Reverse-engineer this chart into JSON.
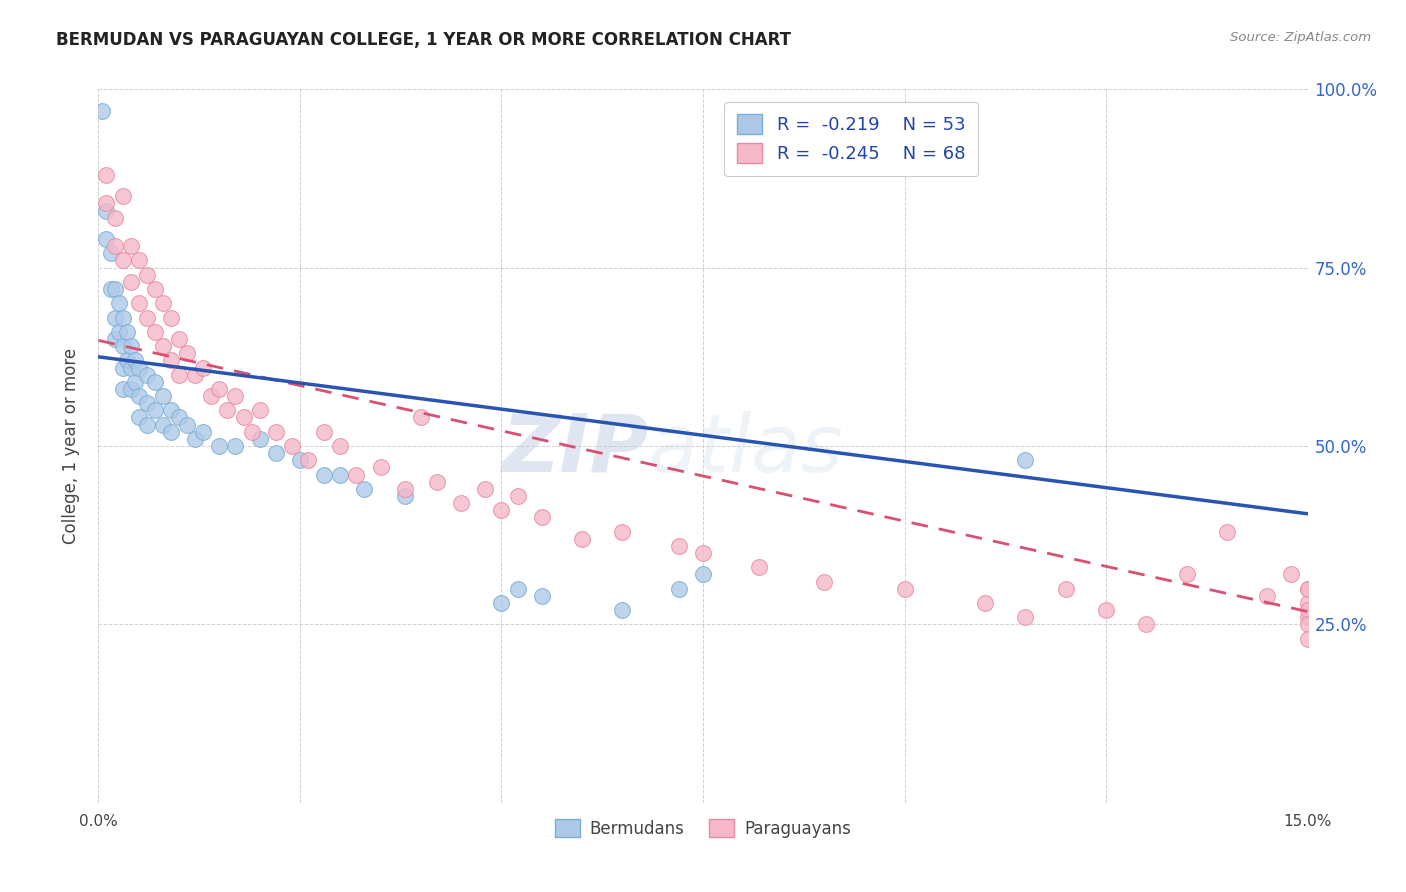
{
  "title": "BERMUDAN VS PARAGUAYAN COLLEGE, 1 YEAR OR MORE CORRELATION CHART",
  "source": "Source: ZipAtlas.com",
  "ylabel": "College, 1 year or more",
  "xlim": [
    0,
    0.15
  ],
  "ylim": [
    0,
    1.0
  ],
  "xticks": [
    0,
    0.025,
    0.05,
    0.075,
    0.1,
    0.125,
    0.15
  ],
  "xtick_labels": [
    "0.0%",
    "",
    "",
    "",
    "",
    "",
    "15.0%"
  ],
  "ytick_positions_right": [
    0.25,
    0.5,
    0.75,
    1.0
  ],
  "ytick_labels_right": [
    "25.0%",
    "50.0%",
    "75.0%",
    "100.0%"
  ],
  "bermuda_R": -0.219,
  "bermuda_N": 53,
  "paraguay_R": -0.245,
  "paraguay_N": 68,
  "bermuda_scatter_color": "#aec9e8",
  "bermuda_edge_color": "#7aaed4",
  "paraguay_scatter_color": "#f5b8c8",
  "paraguay_edge_color": "#e88aa0",
  "trend_bermuda_color": "#2955b0",
  "trend_paraguay_color": "#d95070",
  "background_color": "#ffffff",
  "grid_color": "#cccccc",
  "watermark_zip": "ZIP",
  "watermark_atlas": "atlas",
  "legend_label_bermuda": "Bermudans",
  "legend_label_paraguay": "Paraguayans",
  "bermuda_trend_x0": 0.0,
  "bermuda_trend_y0": 0.625,
  "bermuda_trend_x1": 0.15,
  "bermuda_trend_y1": 0.405,
  "paraguay_trend_x0": 0.0,
  "paraguay_trend_y0": 0.648,
  "paraguay_trend_x1": 0.15,
  "paraguay_trend_y1": 0.268,
  "bermuda_x": [
    0.0005,
    0.001,
    0.001,
    0.0015,
    0.0015,
    0.002,
    0.002,
    0.002,
    0.0025,
    0.0025,
    0.003,
    0.003,
    0.003,
    0.003,
    0.0035,
    0.0035,
    0.004,
    0.004,
    0.004,
    0.0045,
    0.0045,
    0.005,
    0.005,
    0.005,
    0.006,
    0.006,
    0.006,
    0.007,
    0.007,
    0.008,
    0.008,
    0.009,
    0.009,
    0.01,
    0.011,
    0.012,
    0.013,
    0.015,
    0.017,
    0.02,
    0.022,
    0.025,
    0.028,
    0.03,
    0.033,
    0.038,
    0.05,
    0.052,
    0.055,
    0.065,
    0.072,
    0.075,
    0.115
  ],
  "bermuda_y": [
    0.97,
    0.83,
    0.79,
    0.77,
    0.72,
    0.72,
    0.68,
    0.65,
    0.7,
    0.66,
    0.68,
    0.64,
    0.61,
    0.58,
    0.66,
    0.62,
    0.64,
    0.61,
    0.58,
    0.62,
    0.59,
    0.61,
    0.57,
    0.54,
    0.6,
    0.56,
    0.53,
    0.59,
    0.55,
    0.57,
    0.53,
    0.55,
    0.52,
    0.54,
    0.53,
    0.51,
    0.52,
    0.5,
    0.5,
    0.51,
    0.49,
    0.48,
    0.46,
    0.46,
    0.44,
    0.43,
    0.28,
    0.3,
    0.29,
    0.27,
    0.3,
    0.32,
    0.48
  ],
  "paraguay_x": [
    0.001,
    0.001,
    0.002,
    0.002,
    0.003,
    0.003,
    0.004,
    0.004,
    0.005,
    0.005,
    0.006,
    0.006,
    0.007,
    0.007,
    0.008,
    0.008,
    0.009,
    0.009,
    0.01,
    0.01,
    0.011,
    0.012,
    0.013,
    0.014,
    0.015,
    0.016,
    0.017,
    0.018,
    0.019,
    0.02,
    0.022,
    0.024,
    0.026,
    0.028,
    0.03,
    0.032,
    0.035,
    0.038,
    0.04,
    0.042,
    0.045,
    0.048,
    0.05,
    0.052,
    0.055,
    0.06,
    0.065,
    0.072,
    0.075,
    0.082,
    0.09,
    0.1,
    0.11,
    0.115,
    0.12,
    0.125,
    0.13,
    0.135,
    0.14,
    0.145,
    0.148,
    0.15,
    0.15,
    0.15,
    0.15,
    0.15,
    0.15,
    0.15
  ],
  "paraguay_y": [
    0.88,
    0.84,
    0.82,
    0.78,
    0.85,
    0.76,
    0.78,
    0.73,
    0.76,
    0.7,
    0.74,
    0.68,
    0.72,
    0.66,
    0.7,
    0.64,
    0.68,
    0.62,
    0.65,
    0.6,
    0.63,
    0.6,
    0.61,
    0.57,
    0.58,
    0.55,
    0.57,
    0.54,
    0.52,
    0.55,
    0.52,
    0.5,
    0.48,
    0.52,
    0.5,
    0.46,
    0.47,
    0.44,
    0.54,
    0.45,
    0.42,
    0.44,
    0.41,
    0.43,
    0.4,
    0.37,
    0.38,
    0.36,
    0.35,
    0.33,
    0.31,
    0.3,
    0.28,
    0.26,
    0.3,
    0.27,
    0.25,
    0.32,
    0.38,
    0.29,
    0.32,
    0.3,
    0.28,
    0.26,
    0.3,
    0.27,
    0.25,
    0.23
  ]
}
